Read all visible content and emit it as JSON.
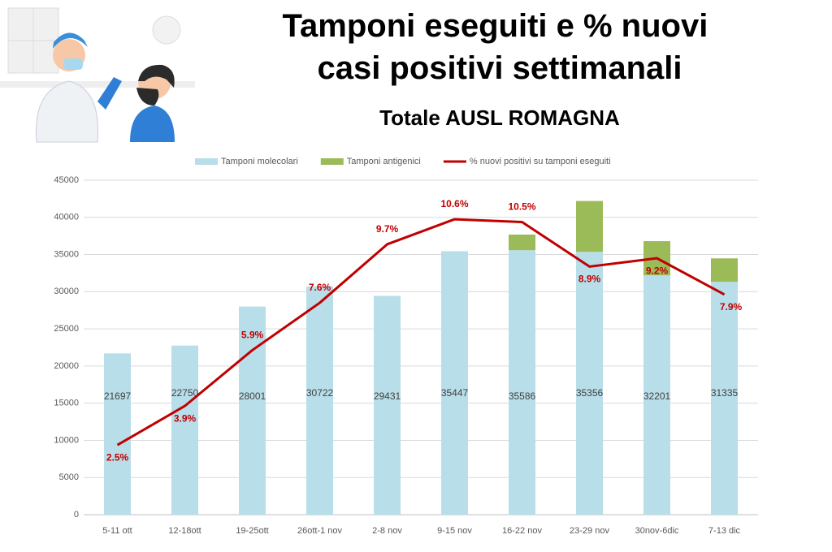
{
  "chart_data": {
    "type": "bar",
    "title": "Tamponi eseguiti e % nuovi casi positivi settimanali",
    "subtitle": "Totale AUSL ROMAGNA",
    "categories": [
      "5-11 ott",
      "12-18ott",
      "19-25ott",
      "26ott-1 nov",
      "2-8 nov",
      "9-15 nov",
      "16-22 nov",
      "23-29 nov",
      "30nov-6dic",
      "7-13 dic"
    ],
    "series": [
      {
        "name": "Tamponi molecolari",
        "color": "#b8dee9",
        "values": [
          21697,
          22750,
          28001,
          30722,
          29431,
          35447,
          35586,
          35356,
          32201,
          31335
        ]
      },
      {
        "name": "Tamponi antigenici",
        "color": "#9bbb59",
        "values": [
          null,
          null,
          null,
          null,
          null,
          null,
          2100,
          6850,
          4600,
          3150
        ]
      },
      {
        "name": "% nuovi positivi su tamponi eseguiti",
        "color": "#c00000",
        "type": "line",
        "axis": "y2",
        "values": [
          2.5,
          3.9,
          5.9,
          7.6,
          9.7,
          10.6,
          10.5,
          8.9,
          9.2,
          7.9
        ],
        "value_labels": [
          "2.5%",
          "3.9%",
          "5.9%",
          "7.6%",
          "9.7%",
          "10.6%",
          "10.5%",
          "8.9%",
          "9.2%",
          "7.9%"
        ]
      }
    ],
    "ylim": [
      0,
      45000
    ],
    "yticks": [
      0,
      5000,
      10000,
      15000,
      20000,
      25000,
      30000,
      35000,
      40000,
      45000
    ],
    "y2lim": [
      0,
      12
    ],
    "grid": true,
    "legend": "top"
  }
}
